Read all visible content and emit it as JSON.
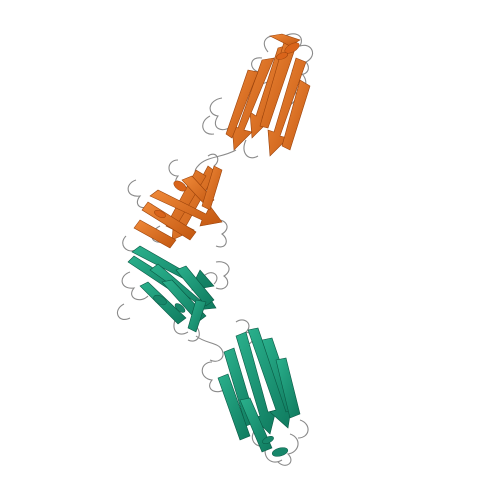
{
  "image": {
    "background": "#ffffff",
    "subject": "ribbon-diagram",
    "chains": [
      {
        "id": "chain-orange",
        "color": "#e8701f",
        "dark": "#b44d0e",
        "domains": 2
      },
      {
        "id": "chain-teal",
        "color": "#1c9a7a",
        "dark": "#0f6e55",
        "domains": 2
      }
    ],
    "loop_color": "#8a8a8a"
  }
}
